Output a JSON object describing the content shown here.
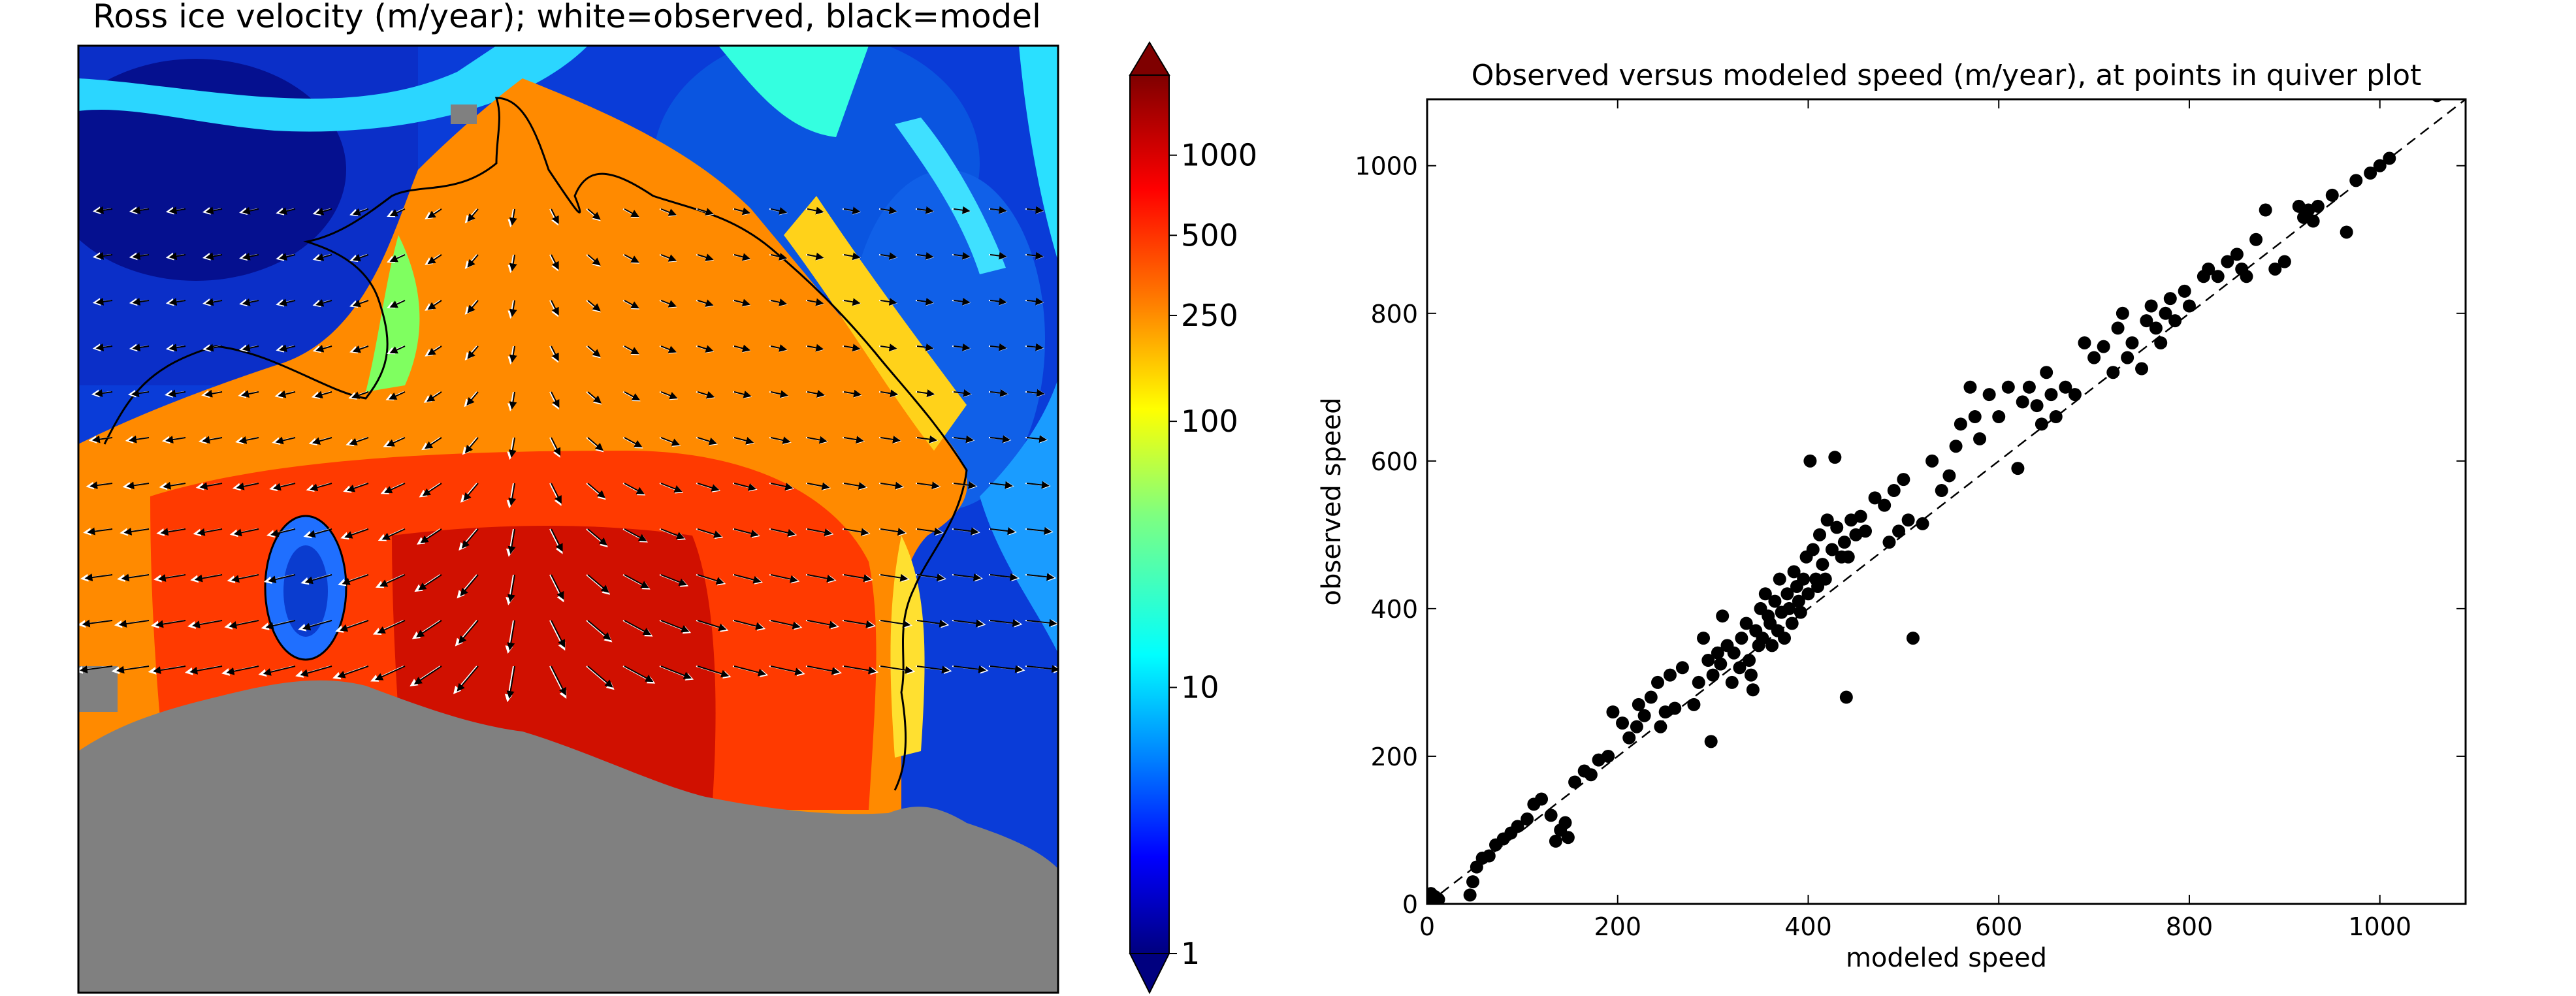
{
  "left_panel": {
    "title": "Ross ice velocity (m/year); white=observed, black=model",
    "colorbar": {
      "scale": "log",
      "range": [
        1,
        2000
      ],
      "extend": "both",
      "colormap": "jet",
      "ticks": [
        {
          "value": 1000,
          "label": "1000"
        },
        {
          "value": 500,
          "label": "500"
        },
        {
          "value": 250,
          "label": "250"
        },
        {
          "value": 100,
          "label": "100"
        },
        {
          "value": 10,
          "label": "10"
        },
        {
          "value": 1,
          "label": "1"
        }
      ]
    },
    "colors": {
      "missing": "#808080",
      "jet": [
        "#00007f",
        "#0000ff",
        "#007fff",
        "#00ffff",
        "#7fff7f",
        "#ffff00",
        "#ff7f00",
        "#ff0000",
        "#7f0000"
      ],
      "observed_arrow": "#ffffff",
      "model_arrow": "#000000"
    }
  },
  "chart_data": {
    "type": "scatter",
    "title": "Observed versus modeled speed (m/year), at points in quiver plot",
    "xlabel": "modeled speed",
    "ylabel": "observed speed",
    "xlim": [
      0,
      1090
    ],
    "ylim": [
      0,
      1090
    ],
    "xticks": [
      0,
      200,
      400,
      600,
      800,
      1000
    ],
    "yticks": [
      0,
      200,
      400,
      600,
      800,
      1000
    ],
    "grid": false,
    "reference_line": {
      "style": "dashed",
      "from": [
        0,
        0
      ],
      "to": [
        1090,
        1090
      ]
    },
    "marker_color": "#000000",
    "points": [
      [
        2,
        2
      ],
      [
        5,
        5
      ],
      [
        8,
        10
      ],
      [
        12,
        6
      ],
      [
        4,
        14
      ],
      [
        45,
        12
      ],
      [
        48,
        30
      ],
      [
        52,
        50
      ],
      [
        58,
        62
      ],
      [
        65,
        65
      ],
      [
        72,
        80
      ],
      [
        80,
        88
      ],
      [
        88,
        96
      ],
      [
        95,
        105
      ],
      [
        105,
        115
      ],
      [
        112,
        135
      ],
      [
        120,
        142
      ],
      [
        130,
        120
      ],
      [
        140,
        100
      ],
      [
        145,
        110
      ],
      [
        148,
        90
      ],
      [
        135,
        85
      ],
      [
        155,
        165
      ],
      [
        165,
        180
      ],
      [
        172,
        175
      ],
      [
        180,
        195
      ],
      [
        190,
        200
      ],
      [
        195,
        260
      ],
      [
        205,
        245
      ],
      [
        212,
        225
      ],
      [
        220,
        240
      ],
      [
        222,
        270
      ],
      [
        228,
        255
      ],
      [
        235,
        280
      ],
      [
        242,
        300
      ],
      [
        245,
        240
      ],
      [
        250,
        260
      ],
      [
        255,
        310
      ],
      [
        260,
        265
      ],
      [
        268,
        320
      ],
      [
        280,
        270
      ],
      [
        285,
        300
      ],
      [
        290,
        360
      ],
      [
        295,
        330
      ],
      [
        298,
        220
      ],
      [
        300,
        310
      ],
      [
        305,
        340
      ],
      [
        308,
        325
      ],
      [
        310,
        390
      ],
      [
        315,
        350
      ],
      [
        320,
        300
      ],
      [
        322,
        340
      ],
      [
        328,
        320
      ],
      [
        330,
        360
      ],
      [
        335,
        380
      ],
      [
        338,
        330
      ],
      [
        340,
        310
      ],
      [
        342,
        290
      ],
      [
        345,
        370
      ],
      [
        348,
        350
      ],
      [
        350,
        400
      ],
      [
        352,
        360
      ],
      [
        355,
        420
      ],
      [
        358,
        390
      ],
      [
        360,
        380
      ],
      [
        362,
        350
      ],
      [
        365,
        410
      ],
      [
        368,
        370
      ],
      [
        370,
        440
      ],
      [
        372,
        395
      ],
      [
        375,
        360
      ],
      [
        378,
        420
      ],
      [
        380,
        400
      ],
      [
        383,
        380
      ],
      [
        385,
        450
      ],
      [
        388,
        430
      ],
      [
        390,
        410
      ],
      [
        392,
        395
      ],
      [
        395,
        440
      ],
      [
        398,
        470
      ],
      [
        400,
        420
      ],
      [
        402,
        600
      ],
      [
        405,
        480
      ],
      [
        408,
        440
      ],
      [
        410,
        430
      ],
      [
        412,
        500
      ],
      [
        415,
        460
      ],
      [
        418,
        440
      ],
      [
        420,
        520
      ],
      [
        425,
        480
      ],
      [
        428,
        605
      ],
      [
        430,
        510
      ],
      [
        435,
        470
      ],
      [
        438,
        490
      ],
      [
        440,
        280
      ],
      [
        442,
        470
      ],
      [
        445,
        520
      ],
      [
        450,
        500
      ],
      [
        455,
        525
      ],
      [
        460,
        505
      ],
      [
        470,
        550
      ],
      [
        480,
        540
      ],
      [
        485,
        490
      ],
      [
        490,
        560
      ],
      [
        495,
        505
      ],
      [
        500,
        575
      ],
      [
        505,
        520
      ],
      [
        510,
        360
      ],
      [
        520,
        515
      ],
      [
        530,
        600
      ],
      [
        540,
        560
      ],
      [
        548,
        580
      ],
      [
        555,
        620
      ],
      [
        560,
        650
      ],
      [
        570,
        700
      ],
      [
        575,
        660
      ],
      [
        580,
        630
      ],
      [
        590,
        690
      ],
      [
        600,
        660
      ],
      [
        610,
        700
      ],
      [
        620,
        590
      ],
      [
        625,
        680
      ],
      [
        632,
        700
      ],
      [
        640,
        675
      ],
      [
        645,
        650
      ],
      [
        650,
        720
      ],
      [
        655,
        690
      ],
      [
        660,
        660
      ],
      [
        670,
        700
      ],
      [
        680,
        690
      ],
      [
        690,
        760
      ],
      [
        700,
        740
      ],
      [
        710,
        755
      ],
      [
        720,
        720
      ],
      [
        725,
        780
      ],
      [
        730,
        800
      ],
      [
        735,
        740
      ],
      [
        740,
        760
      ],
      [
        750,
        725
      ],
      [
        755,
        790
      ],
      [
        760,
        810
      ],
      [
        765,
        780
      ],
      [
        770,
        760
      ],
      [
        775,
        800
      ],
      [
        780,
        820
      ],
      [
        785,
        790
      ],
      [
        795,
        830
      ],
      [
        800,
        810
      ],
      [
        815,
        850
      ],
      [
        820,
        860
      ],
      [
        830,
        850
      ],
      [
        840,
        870
      ],
      [
        850,
        880
      ],
      [
        855,
        860
      ],
      [
        860,
        850
      ],
      [
        870,
        900
      ],
      [
        880,
        940
      ],
      [
        890,
        860
      ],
      [
        900,
        870
      ],
      [
        915,
        945
      ],
      [
        920,
        930
      ],
      [
        925,
        940
      ],
      [
        930,
        925
      ],
      [
        935,
        945
      ],
      [
        950,
        960
      ],
      [
        965,
        910
      ],
      [
        975,
        980
      ],
      [
        990,
        990
      ],
      [
        1000,
        1000
      ],
      [
        1010,
        1010
      ],
      [
        1060,
        1095
      ]
    ]
  }
}
